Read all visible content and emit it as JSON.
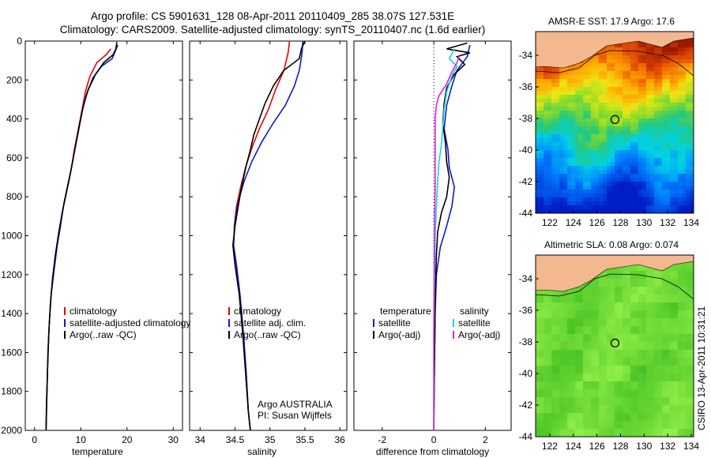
{
  "title": {
    "line1": "Argo profile: CS 5901631_128 08-Apr-2011 20110409_285 38.07S 127.531E",
    "line2": "Climatology: CARS2009. Satellite-adjusted climatology: synTS_20110407.nc (1.6d earlier)"
  },
  "colors": {
    "climatology": "#e8000b",
    "satellite": "#0a1cc8",
    "argo": "#000000",
    "sat_diff": "#19d0e0",
    "argo_adj": "#e020e0"
  },
  "chart_data": [
    {
      "type": "line",
      "name": "temperature_panel",
      "xlabel": "temperature",
      "xticks": [
        0,
        10,
        20,
        30
      ],
      "xlim": [
        -2,
        32
      ],
      "yticks": [
        0,
        200,
        400,
        600,
        800,
        1000,
        1200,
        1400,
        1600,
        1800,
        2000
      ],
      "ylim": [
        2000,
        0
      ],
      "y_reversed": true,
      "legend": [
        "climatology",
        "satellite-adjusted climatology",
        "Argo(..raw -QC)"
      ],
      "series": [
        {
          "name": "climatology",
          "color": "#e8000b",
          "points": [
            [
              16.5,
              40
            ],
            [
              15.5,
              70
            ],
            [
              13.5,
              110
            ],
            [
              12.0,
              180
            ],
            [
              11.0,
              260
            ],
            [
              10.3,
              350
            ],
            [
              9.5,
              450
            ],
            [
              8.6,
              560
            ],
            [
              8.0,
              650
            ],
            [
              7.2,
              740
            ],
            [
              6.3,
              840
            ],
            [
              5.6,
              950
            ],
            [
              4.9,
              1050
            ],
            [
              4.2,
              1180
            ],
            [
              3.6,
              1300
            ],
            [
              3.2,
              1450
            ],
            [
              2.9,
              1600
            ],
            [
              2.7,
              1800
            ],
            [
              2.5,
              2000
            ]
          ]
        },
        {
          "name": "satellite-adjusted climatology",
          "color": "#0a1cc8",
          "points": [
            [
              18.0,
              20
            ],
            [
              17.5,
              50
            ],
            [
              16.8,
              90
            ],
            [
              14.5,
              130
            ],
            [
              12.6,
              190
            ],
            [
              11.3,
              270
            ],
            [
              10.4,
              350
            ],
            [
              9.6,
              450
            ],
            [
              8.7,
              560
            ],
            [
              8.0,
              650
            ],
            [
              7.2,
              740
            ],
            [
              6.3,
              840
            ],
            [
              5.6,
              950
            ],
            [
              4.9,
              1050
            ],
            [
              4.2,
              1180
            ],
            [
              3.6,
              1300
            ],
            [
              3.2,
              1450
            ],
            [
              2.9,
              1600
            ],
            [
              2.7,
              1800
            ],
            [
              2.5,
              2000
            ]
          ]
        },
        {
          "name": "Argo(..raw -QC)",
          "color": "#000000",
          "points": [
            [
              17.8,
              5
            ],
            [
              17.6,
              40
            ],
            [
              17.0,
              70
            ],
            [
              15.0,
              110
            ],
            [
              13.2,
              170
            ],
            [
              11.6,
              250
            ],
            [
              10.6,
              330
            ],
            [
              9.8,
              420
            ],
            [
              9.0,
              520
            ],
            [
              8.3,
              610
            ],
            [
              7.6,
              700
            ],
            [
              6.8,
              790
            ],
            [
              6.0,
              880
            ],
            [
              5.2,
              990
            ],
            [
              4.5,
              1100
            ],
            [
              3.9,
              1220
            ],
            [
              3.4,
              1360
            ],
            [
              3.1,
              1500
            ],
            [
              2.8,
              1700
            ],
            [
              2.6,
              1850
            ],
            [
              2.5,
              2000
            ]
          ]
        }
      ]
    },
    {
      "type": "line",
      "name": "salinity_panel",
      "xlabel": "salinity",
      "xticks": [
        34,
        34.5,
        35,
        35.5,
        36
      ],
      "xlim": [
        33.85,
        36.1
      ],
      "yticks": [
        0,
        200,
        400,
        600,
        800,
        1000,
        1200,
        1400,
        1600,
        1800,
        2000
      ],
      "ylim": [
        2000,
        0
      ],
      "y_reversed": true,
      "legend": [
        "climatology",
        "satellite adj. clim.",
        "Argo(..raw -QC)"
      ],
      "annotation": [
        "Argo AUSTRALIA",
        "PI: Susan Wijffels"
      ],
      "series": [
        {
          "name": "climatology",
          "color": "#e8000b",
          "points": [
            [
              35.28,
              0
            ],
            [
              35.26,
              60
            ],
            [
              35.2,
              150
            ],
            [
              35.08,
              250
            ],
            [
              34.98,
              350
            ],
            [
              34.85,
              450
            ],
            [
              34.74,
              550
            ],
            [
              34.65,
              650
            ],
            [
              34.58,
              750
            ],
            [
              34.52,
              850
            ],
            [
              34.49,
              950
            ],
            [
              34.48,
              1050
            ],
            [
              34.52,
              1150
            ],
            [
              34.57,
              1300
            ],
            [
              34.62,
              1500
            ],
            [
              34.66,
              1700
            ],
            [
              34.69,
              1900
            ],
            [
              34.72,
              2000
            ]
          ]
        },
        {
          "name": "satellite adj. clim.",
          "color": "#0a1cc8",
          "points": [
            [
              35.47,
              0
            ],
            [
              35.46,
              60
            ],
            [
              35.42,
              150
            ],
            [
              35.35,
              230
            ],
            [
              35.22,
              330
            ],
            [
              35.05,
              420
            ],
            [
              34.88,
              520
            ],
            [
              34.74,
              620
            ],
            [
              34.63,
              720
            ],
            [
              34.55,
              820
            ],
            [
              34.5,
              920
            ],
            [
              34.48,
              1050
            ],
            [
              34.52,
              1150
            ],
            [
              34.57,
              1300
            ],
            [
              34.62,
              1500
            ],
            [
              34.66,
              1700
            ],
            [
              34.69,
              1900
            ],
            [
              34.72,
              2000
            ]
          ]
        },
        {
          "name": "Argo(..raw -QC)",
          "color": "#000000",
          "points": [
            [
              35.5,
              0
            ],
            [
              35.45,
              40
            ],
            [
              35.42,
              90
            ],
            [
              35.2,
              150
            ],
            [
              35.05,
              230
            ],
            [
              34.93,
              320
            ],
            [
              34.85,
              400
            ],
            [
              34.77,
              480
            ],
            [
              34.72,
              560
            ],
            [
              34.66,
              640
            ],
            [
              34.6,
              740
            ],
            [
              34.55,
              840
            ],
            [
              34.5,
              950
            ],
            [
              34.47,
              1050
            ],
            [
              34.5,
              1150
            ],
            [
              34.56,
              1300
            ],
            [
              34.61,
              1500
            ],
            [
              34.65,
              1700
            ],
            [
              34.69,
              1900
            ],
            [
              34.72,
              2000
            ]
          ]
        }
      ]
    },
    {
      "type": "line",
      "name": "difference_panel",
      "xlabel": "difference from climatology",
      "xticks": [
        -2,
        0,
        2
      ],
      "xlim": [
        -3.1,
        3.0
      ],
      "yticks": [
        0,
        200,
        400,
        600,
        800,
        1000,
        1200,
        1400,
        1600,
        1800,
        2000
      ],
      "ylim": [
        2000,
        0
      ],
      "y_reversed": true,
      "legend_left": [
        "temperature",
        "satellite",
        "Argo(-adj)"
      ],
      "legend_right": [
        "salinity",
        "satellite",
        "Argo(-adj)"
      ],
      "series": [
        {
          "name": "temperature satellite",
          "color": "#0a1cc8",
          "points": [
            [
              1.4,
              20
            ],
            [
              1.3,
              80
            ],
            [
              0.9,
              150
            ],
            [
              0.7,
              230
            ],
            [
              0.5,
              330
            ],
            [
              0.4,
              450
            ],
            [
              0.55,
              560
            ],
            [
              0.6,
              650
            ],
            [
              0.8,
              750
            ],
            [
              0.7,
              850
            ],
            [
              0.5,
              950
            ],
            [
              0.25,
              1060
            ],
            [
              0.1,
              1200
            ],
            [
              0.05,
              1400
            ],
            [
              0.02,
              1700
            ],
            [
              0.0,
              2000
            ]
          ]
        },
        {
          "name": "temperature Argo(-adj)",
          "color": "#000000",
          "points": [
            [
              1.3,
              10
            ],
            [
              0.5,
              40
            ],
            [
              1.4,
              60
            ],
            [
              0.9,
              80
            ],
            [
              1.2,
              120
            ],
            [
              0.8,
              170
            ],
            [
              0.5,
              240
            ],
            [
              0.4,
              320
            ],
            [
              0.35,
              420
            ],
            [
              0.45,
              520
            ],
            [
              0.5,
              620
            ],
            [
              0.6,
              700
            ],
            [
              0.5,
              800
            ],
            [
              0.3,
              880
            ],
            [
              0.15,
              980
            ],
            [
              0.1,
              1100
            ],
            [
              0.06,
              1300
            ],
            [
              0.03,
              1600
            ],
            [
              0.0,
              2000
            ]
          ]
        },
        {
          "name": "salinity satellite",
          "color": "#19d0e0",
          "points": [
            [
              0.8,
              40
            ],
            [
              0.6,
              90
            ],
            [
              0.9,
              130
            ],
            [
              0.7,
              180
            ],
            [
              0.5,
              260
            ],
            [
              0.4,
              350
            ],
            [
              0.35,
              440
            ],
            [
              0.3,
              530
            ],
            [
              0.2,
              620
            ],
            [
              0.15,
              720
            ],
            [
              0.1,
              850
            ],
            [
              0.05,
              1000
            ],
            [
              0.0,
              1500
            ],
            [
              0.0,
              2000
            ]
          ]
        },
        {
          "name": "salinity Argo(-adj)",
          "color": "#e020e0",
          "points": [
            [
              1.0,
              70
            ],
            [
              0.9,
              110
            ],
            [
              0.7,
              160
            ],
            [
              0.5,
              220
            ],
            [
              0.2,
              280
            ],
            [
              0.1,
              330
            ],
            [
              0.05,
              400
            ],
            [
              0.05,
              520
            ],
            [
              0.05,
              640
            ],
            [
              0.05,
              760
            ],
            [
              0.03,
              900
            ],
            [
              0.02,
              1100
            ],
            [
              0.0,
              1500
            ],
            [
              0.0,
              2000
            ]
          ]
        }
      ]
    }
  ],
  "maps": [
    {
      "title": "AMSR-E SST: 17.9 Argo: 17.6",
      "kind": "sst",
      "lon_ticks": [
        122,
        124,
        126,
        128,
        130,
        132,
        134
      ],
      "lat_ticks": [
        -34,
        -36,
        -38,
        -40,
        -42,
        -44
      ],
      "lon_range": [
        120.8,
        134.2
      ],
      "lat_range": [
        -44,
        -32.5
      ],
      "marker": {
        "lon": 127.531,
        "lat": -38.07
      }
    },
    {
      "title": "Altimetric SLA: 0.08 Argo: 0.074",
      "kind": "sla",
      "lon_ticks": [
        122,
        124,
        126,
        128,
        130,
        132,
        134
      ],
      "lat_ticks": [
        -34,
        -36,
        -38,
        -40,
        -42,
        -44
      ],
      "lon_range": [
        120.8,
        134.2
      ],
      "lat_range": [
        -44,
        -32.5
      ],
      "marker": {
        "lon": 127.531,
        "lat": -38.07
      }
    }
  ],
  "footer_vertical": "CSIRO 13-Apr-2011 10:31:21"
}
